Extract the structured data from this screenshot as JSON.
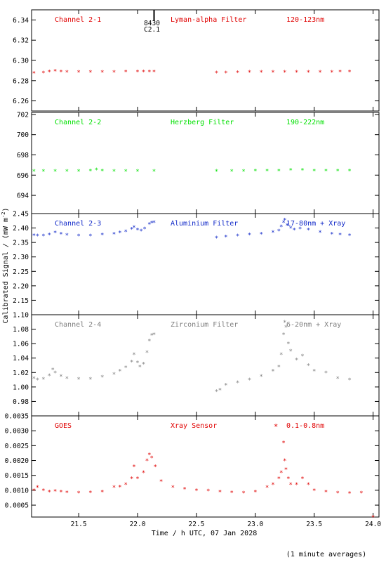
{
  "chart_data": {
    "type": "scatter",
    "xlabel": "Time / h UTC, 07 Jan 2028",
    "ylabel": "Calibrated Signal / (mW m",
    "ylabel_sup": "-2",
    "ylabel_close": ")",
    "footnote": "(1 minute averages)",
    "xlim": [
      21.1,
      24.05
    ],
    "x_ticks": [
      21.5,
      22.0,
      22.5,
      23.0,
      23.5,
      24.0
    ],
    "x_tick_labels": [
      "21.5",
      "22.0",
      "22.5",
      "23.0",
      "23.5",
      "24.0"
    ],
    "event_marker": {
      "x": 22.14,
      "labels": [
        "8430",
        "C2.1"
      ]
    },
    "panels": [
      {
        "name": "Channel 2-1",
        "filter": "Lyman-alpha Filter",
        "band": "120-123nm",
        "color": "#e00000",
        "ylim": [
          6.25,
          6.35
        ],
        "y_ticks": [
          6.26,
          6.28,
          6.3,
          6.32,
          6.34
        ],
        "y_tick_labels": [
          "6.26",
          "6.28",
          "6.30",
          "6.32",
          "6.34"
        ],
        "x": [
          21.12,
          21.2,
          21.25,
          21.3,
          21.35,
          21.4,
          21.5,
          21.6,
          21.7,
          21.8,
          21.9,
          22.0,
          22.05,
          22.1,
          22.14,
          22.67,
          22.75,
          22.85,
          22.95,
          23.05,
          23.15,
          23.25,
          23.35,
          23.45,
          23.55,
          23.65,
          23.72,
          23.8
        ],
        "y": [
          6.2875,
          6.288,
          6.289,
          6.2895,
          6.289,
          6.2885,
          6.2885,
          6.2885,
          6.2885,
          6.2885,
          6.289,
          6.289,
          6.289,
          6.289,
          6.289,
          6.288,
          6.288,
          6.2882,
          6.2884,
          6.2885,
          6.2885,
          6.2885,
          6.2885,
          6.2886,
          6.2886,
          6.2887,
          6.2888,
          6.2888
        ]
      },
      {
        "name": "Channel 2-2",
        "filter": "Herzberg Filter",
        "band": "190-222nm",
        "color": "#00e000",
        "ylim": [
          692.2,
          702.2
        ],
        "y_ticks": [
          694,
          696,
          698,
          700,
          702
        ],
        "y_tick_labels": [
          "694",
          "696",
          "698",
          "700",
          "702"
        ],
        "x": [
          21.12,
          21.2,
          21.3,
          21.4,
          21.5,
          21.6,
          21.65,
          21.7,
          21.8,
          21.9,
          22.0,
          22.14,
          22.67,
          22.8,
          22.9,
          23.0,
          23.1,
          23.2,
          23.3,
          23.4,
          23.5,
          23.6,
          23.7,
          23.8
        ],
        "y": [
          696.4,
          696.4,
          696.4,
          696.4,
          696.4,
          696.45,
          696.55,
          696.45,
          696.4,
          696.4,
          696.4,
          696.4,
          696.4,
          696.4,
          696.4,
          696.45,
          696.45,
          696.45,
          696.5,
          696.5,
          696.45,
          696.45,
          696.45,
          696.45
        ]
      },
      {
        "name": "Channel 2-3",
        "filter": "Aluminium Filter",
        "band": "17-80nm + Xray",
        "color": "#1028c8",
        "ylim": [
          2.1,
          2.45
        ],
        "y_ticks": [
          2.15,
          2.2,
          2.25,
          2.3,
          2.35,
          2.4,
          2.45
        ],
        "y_tick_labels": [
          "2.15",
          "2.20",
          "2.25",
          "2.30",
          "2.35",
          "2.40",
          "2.45"
        ],
        "x": [
          21.12,
          21.15,
          21.2,
          21.25,
          21.3,
          21.35,
          21.4,
          21.5,
          21.6,
          21.7,
          21.8,
          21.85,
          21.9,
          21.95,
          21.97,
          22.0,
          22.03,
          22.06,
          22.1,
          22.12,
          22.14,
          22.67,
          22.75,
          22.85,
          22.95,
          23.05,
          23.15,
          23.2,
          23.22,
          23.24,
          23.25,
          23.27,
          23.3,
          23.33,
          23.38,
          23.45,
          23.55,
          23.65,
          23.72,
          23.8
        ],
        "y": [
          2.375,
          2.373,
          2.374,
          2.377,
          2.384,
          2.38,
          2.376,
          2.373,
          2.374,
          2.377,
          2.38,
          2.384,
          2.388,
          2.397,
          2.403,
          2.394,
          2.39,
          2.398,
          2.414,
          2.418,
          2.42,
          2.366,
          2.37,
          2.373,
          2.377,
          2.38,
          2.385,
          2.39,
          2.405,
          2.42,
          2.428,
          2.41,
          2.4,
          2.394,
          2.398,
          2.394,
          2.385,
          2.38,
          2.377,
          2.375
        ]
      },
      {
        "name": "Channel 2-4",
        "filter": "Zirconium Filter",
        "band": "6-20nm + Xray",
        "color": "#808080",
        "ylim": [
          0.96,
          1.1
        ],
        "y_ticks": [
          0.98,
          1.0,
          1.02,
          1.04,
          1.06,
          1.08,
          1.1
        ],
        "y_tick_labels": [
          "0.98",
          "1.00",
          "1.02",
          "1.04",
          "1.06",
          "1.08",
          "1.10"
        ],
        "x": [
          21.12,
          21.15,
          21.2,
          21.25,
          21.28,
          21.3,
          21.35,
          21.4,
          21.5,
          21.6,
          21.7,
          21.8,
          21.85,
          21.9,
          21.95,
          21.97,
          22.0,
          22.02,
          22.05,
          22.08,
          22.1,
          22.12,
          22.14,
          22.67,
          22.7,
          22.75,
          22.85,
          22.95,
          23.05,
          23.15,
          23.2,
          23.22,
          23.24,
          23.25,
          23.26,
          23.28,
          23.3,
          23.35,
          23.4,
          23.45,
          23.5,
          23.6,
          23.7,
          23.8
        ],
        "y": [
          1.012,
          1.01,
          1.011,
          1.016,
          1.024,
          1.02,
          1.015,
          1.012,
          1.011,
          1.011,
          1.014,
          1.018,
          1.022,
          1.027,
          1.035,
          1.045,
          1.034,
          1.028,
          1.032,
          1.048,
          1.064,
          1.072,
          1.073,
          0.994,
          0.996,
          1.003,
          1.006,
          1.01,
          1.015,
          1.022,
          1.028,
          1.045,
          1.073,
          1.09,
          1.083,
          1.06,
          1.05,
          1.038,
          1.043,
          1.03,
          1.022,
          1.02,
          1.012,
          1.01
        ]
      },
      {
        "name": "GOES",
        "filter": "Xray Sensor",
        "band": "0.1-0.8nm",
        "band_symbol": "*",
        "color": "#e00000",
        "ylim": [
          0.0001,
          0.0035
        ],
        "y_ticks": [
          0.0005,
          0.001,
          0.0015,
          0.002,
          0.0025,
          0.003,
          0.0035
        ],
        "y_tick_labels": [
          "0.0005",
          "0.0010",
          "0.0015",
          "0.0020",
          "0.0025",
          "0.0030",
          "0.0035"
        ],
        "x": [
          21.12,
          21.15,
          21.2,
          21.25,
          21.3,
          21.35,
          21.4,
          21.5,
          21.6,
          21.7,
          21.8,
          21.85,
          21.9,
          21.95,
          21.97,
          22.0,
          22.05,
          22.08,
          22.1,
          22.12,
          22.15,
          22.2,
          22.3,
          22.4,
          22.5,
          22.6,
          22.7,
          22.8,
          22.9,
          23.0,
          23.1,
          23.15,
          23.2,
          23.22,
          23.24,
          23.25,
          23.26,
          23.28,
          23.3,
          23.35,
          23.4,
          23.45,
          23.5,
          23.6,
          23.7,
          23.8,
          23.9,
          24.0
        ],
        "y": [
          0.001,
          0.0011,
          0.001,
          0.00095,
          0.00097,
          0.00095,
          0.00093,
          0.00092,
          0.00093,
          0.00095,
          0.0011,
          0.00112,
          0.0012,
          0.0014,
          0.0018,
          0.0014,
          0.0016,
          0.002,
          0.0022,
          0.0021,
          0.0018,
          0.0013,
          0.0011,
          0.00105,
          0.001,
          0.00098,
          0.00095,
          0.00093,
          0.00092,
          0.00095,
          0.0011,
          0.0012,
          0.0014,
          0.0016,
          0.0026,
          0.002,
          0.0017,
          0.0014,
          0.0012,
          0.0012,
          0.0014,
          0.0012,
          0.001,
          0.00095,
          0.00092,
          0.0009,
          0.00092,
          0.0001
        ]
      }
    ]
  }
}
